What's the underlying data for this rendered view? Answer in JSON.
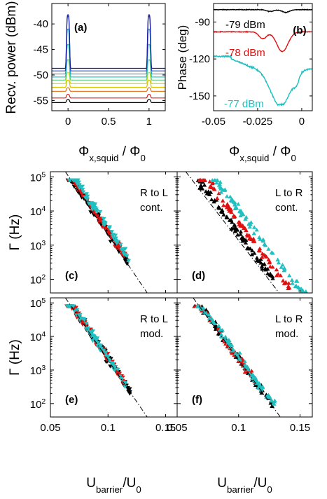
{
  "chart_data": [
    {
      "id": "a",
      "type": "line",
      "panel_label": "(a)",
      "xlabel_main": "Φ",
      "xlabel_sub": "x,squid",
      "xlabel_rest": " / Φ",
      "xlabel_rest_sub": "0",
      "ylabel": "Recv. power (dBm)",
      "xlim": [
        -0.2,
        1.2
      ],
      "ylim": [
        -57,
        -36
      ],
      "xticks": [
        "0",
        "0.5",
        "1"
      ],
      "xtick_values": [
        0,
        0.5,
        1
      ],
      "yticks": [
        "-40",
        "-45",
        "-50",
        "-55"
      ],
      "ytick_values": [
        -40,
        -45,
        -50,
        -55
      ],
      "series": [
        {
          "color": "#000000",
          "base": -55.4,
          "peak": -54.8
        },
        {
          "color": "#d42020",
          "base": -54.5,
          "peak": -53.8
        },
        {
          "color": "#e07010",
          "base": -53.2,
          "peak": -52.5
        },
        {
          "color": "#d8c000",
          "base": -52.4,
          "peak": -51.0
        },
        {
          "color": "#c8e020",
          "base": -51.7,
          "peak": -49.5
        },
        {
          "color": "#60d080",
          "base": -51.0,
          "peak": -47.0
        },
        {
          "color": "#20c8c0",
          "base": -50.4,
          "peak": -44.0
        },
        {
          "color": "#20a0e0",
          "base": -49.8,
          "peak": -41.0
        },
        {
          "color": "#2050d0",
          "base": -49.2,
          "peak": -38.5
        },
        {
          "color": "#1a1a9a",
          "base": -48.7,
          "peak": -38.2
        }
      ]
    },
    {
      "id": "b",
      "type": "line",
      "panel_label": "(b)",
      "ylabel": "Phase (deg)",
      "xlabel_main": "Φ",
      "xlabel_sub": "x,squid",
      "xlabel_rest": " / Φ",
      "xlabel_rest_sub": "0",
      "xlim": [
        -0.05,
        0.006
      ],
      "ylim": [
        -162,
        -75
      ],
      "xticks": [
        "-0.05",
        "-0.025",
        "0"
      ],
      "xtick_values": [
        -0.05,
        -0.025,
        0
      ],
      "yticks": [
        "-90",
        "-120",
        "-150"
      ],
      "ytick_values": [
        -90,
        -120,
        -150
      ],
      "series": [
        {
          "name": "-79 dBm",
          "color": "#000000",
          "baseline": -80,
          "dip": -84
        },
        {
          "name": "-78 dBm",
          "color": "#e01010",
          "baseline": -98,
          "dip": -114
        },
        {
          "name": "-77 dBm",
          "color": "#20c0c0",
          "baseline": -118,
          "dip": -157
        }
      ]
    },
    {
      "id": "c",
      "type": "scatter",
      "panel_label": "(c)",
      "annotation": [
        "R to L",
        "cont."
      ],
      "ylabel_main": "Γ",
      "ylabel_rest": " (Hz)",
      "xlim": [
        0.05,
        0.16
      ],
      "ylim_log10": [
        1.6,
        5.15
      ],
      "yticks": [
        "10",
        "10",
        "10",
        "10"
      ],
      "yticks_exp": [
        "5",
        "4",
        "3",
        "2"
      ],
      "ytick_values": [
        5,
        4,
        3,
        2
      ],
      "fit_line": {
        "x": [
          0.063,
          0.134
        ],
        "log10y": [
          5.15,
          1.6
        ]
      },
      "series": [
        {
          "color": "#000000",
          "marker": "down-triangle",
          "x_range": [
            0.065,
            0.118
          ],
          "offset": 0.05
        },
        {
          "color": "#e01010",
          "marker": "down-triangle",
          "x_range": [
            0.065,
            0.115
          ],
          "offset": 0.1
        },
        {
          "color": "#20c0c0",
          "marker": "down-triangle",
          "x_range": [
            0.066,
            0.119
          ],
          "offset": 0.2
        }
      ]
    },
    {
      "id": "d",
      "type": "scatter",
      "panel_label": "(d)",
      "annotation": [
        "L to R",
        "cont."
      ],
      "xlim": [
        0.05,
        0.16
      ],
      "ylim_log10": [
        1.6,
        5.15
      ],
      "fit_line": {
        "x": [
          0.057,
          0.133
        ],
        "log10y": [
          5.15,
          1.6
        ]
      },
      "series": [
        {
          "color": "#000000",
          "marker": "up-triangle",
          "x_range": [
            0.066,
            0.128
          ],
          "offset": 0.22
        },
        {
          "color": "#e01010",
          "marker": "up-triangle",
          "x_range": [
            0.068,
            0.142
          ],
          "offset": 0.55
        },
        {
          "color": "#20c0c0",
          "marker": "up-triangle",
          "x_range": [
            0.078,
            0.156
          ],
          "offset": 0.9
        }
      ]
    },
    {
      "id": "e",
      "type": "scatter",
      "panel_label": "(e)",
      "annotation": [
        "R to L",
        "mod."
      ],
      "ylabel_main": "Γ",
      "ylabel_rest": " (Hz)",
      "xlim": [
        0.05,
        0.16
      ],
      "ylim_log10": [
        1.6,
        5.15
      ],
      "xticks": [
        "0.05",
        "0.1",
        "0.15"
      ],
      "xtick_values": [
        0.05,
        0.1,
        0.15
      ],
      "xlabel_main": "U",
      "xlabel_sub": "barrier",
      "xlabel_rest": "/U",
      "xlabel_rest_sub": "0",
      "yticks": [
        "10",
        "10",
        "10",
        "10"
      ],
      "yticks_exp": [
        "5",
        "4",
        "3",
        "2"
      ],
      "ytick_values": [
        5,
        4,
        3,
        2
      ],
      "fit_line": {
        "x": [
          0.063,
          0.134
        ],
        "log10y": [
          5.15,
          1.6
        ]
      },
      "series": [
        {
          "color": "#000000",
          "marker": "down-triangle",
          "x_range": [
            0.064,
            0.12
          ],
          "offset": 0.05
        },
        {
          "color": "#e01010",
          "marker": "down-triangle",
          "x_range": [
            0.064,
            0.115
          ],
          "offset": 0.05
        },
        {
          "color": "#20c0c0",
          "marker": "down-triangle",
          "x_range": [
            0.064,
            0.116
          ],
          "offset": 0.05
        }
      ]
    },
    {
      "id": "f",
      "type": "scatter",
      "panel_label": "(f)",
      "annotation": [
        "L to R",
        "mod."
      ],
      "xlim": [
        0.05,
        0.16
      ],
      "ylim_log10": [
        1.6,
        5.15
      ],
      "xticks": [
        "0.05",
        "0.1",
        "0.15"
      ],
      "xtick_values": [
        0.05,
        0.1,
        0.15
      ],
      "xlabel_main": "U",
      "xlabel_sub": "barrier",
      "xlabel_rest": "/U",
      "xlabel_rest_sub": "0",
      "fit_line": {
        "x": [
          0.063,
          0.134
        ],
        "log10y": [
          5.15,
          1.6
        ]
      },
      "series": [
        {
          "color": "#000000",
          "marker": "up-triangle",
          "x_range": [
            0.064,
            0.128
          ],
          "offset": 0.05
        },
        {
          "color": "#e01010",
          "marker": "up-triangle",
          "x_range": [
            0.064,
            0.118
          ],
          "offset": 0.05
        },
        {
          "color": "#20c0c0",
          "marker": "up-triangle",
          "x_range": [
            0.066,
            0.13
          ],
          "offset": 0.12
        }
      ]
    }
  ]
}
